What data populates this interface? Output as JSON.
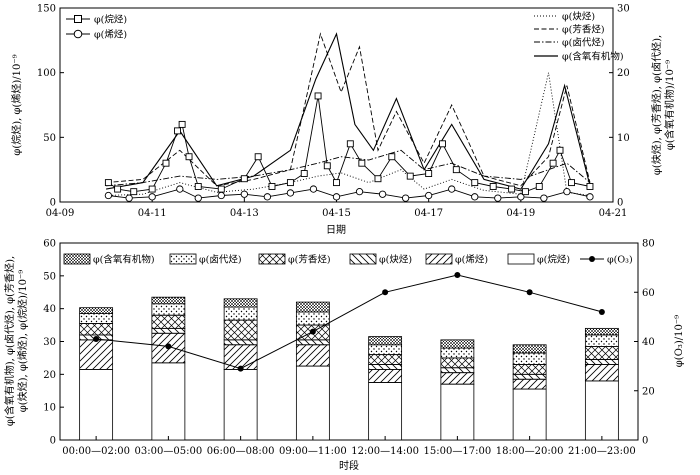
{
  "chart_data": [
    {
      "type": "line",
      "xlabel": "日期",
      "ylabel": "φ(烷烃), φ(烯烃)/10⁻⁹",
      "y2label_line1": "φ(炔烃), φ(芳香烃), φ(卤代烃),",
      "y2label_line2": "φ(含氧有机物)/10⁻⁹",
      "xticks": [
        "04-09",
        "04-11",
        "04-13",
        "04-15",
        "04-17",
        "04-19",
        "04-21"
      ],
      "xlim": [
        0,
        12
      ],
      "ylim": [
        0,
        150
      ],
      "y2lim": [
        0,
        30
      ],
      "yticks": [
        0,
        50,
        100,
        150
      ],
      "y2ticks": [
        0,
        10,
        20,
        30
      ],
      "legend_left": [
        "φ(烷烃)",
        "φ(烯烃)"
      ],
      "legend_right": [
        "φ(炔烃)",
        "φ(芳香烃)",
        "φ(卤代烃)",
        "φ(含氧有机物)"
      ],
      "series": [
        {
          "name": "φ(烷烃)",
          "axis": "left",
          "marker": "square",
          "points": [
            [
              1.05,
              15
            ],
            [
              1.25,
              10
            ],
            [
              1.6,
              8
            ],
            [
              2.0,
              10
            ],
            [
              2.3,
              30
            ],
            [
              2.55,
              55
            ],
            [
              2.65,
              60
            ],
            [
              2.8,
              35
            ],
            [
              3.0,
              12
            ],
            [
              3.5,
              10
            ],
            [
              4.0,
              18
            ],
            [
              4.3,
              35
            ],
            [
              4.6,
              12
            ],
            [
              5.0,
              15
            ],
            [
              5.3,
              22
            ],
            [
              5.6,
              82
            ],
            [
              5.8,
              28
            ],
            [
              6.0,
              15
            ],
            [
              6.3,
              45
            ],
            [
              6.55,
              30
            ],
            [
              6.9,
              18
            ],
            [
              7.2,
              35
            ],
            [
              7.6,
              20
            ],
            [
              8.0,
              22
            ],
            [
              8.3,
              45
            ],
            [
              8.6,
              25
            ],
            [
              9.0,
              15
            ],
            [
              9.4,
              12
            ],
            [
              9.8,
              10
            ],
            [
              10.1,
              8
            ],
            [
              10.4,
              12
            ],
            [
              10.7,
              30
            ],
            [
              10.85,
              40
            ],
            [
              11.1,
              15
            ],
            [
              11.5,
              12
            ]
          ]
        },
        {
          "name": "φ(烯烃)",
          "axis": "left",
          "marker": "circle",
          "points": [
            [
              1.05,
              5
            ],
            [
              1.5,
              3
            ],
            [
              2.0,
              4
            ],
            [
              2.6,
              10
            ],
            [
              3.0,
              3
            ],
            [
              3.5,
              5
            ],
            [
              4.0,
              6
            ],
            [
              4.5,
              4
            ],
            [
              5.0,
              7
            ],
            [
              5.5,
              10
            ],
            [
              6.0,
              4
            ],
            [
              6.5,
              8
            ],
            [
              7.0,
              6
            ],
            [
              7.5,
              3
            ],
            [
              8.0,
              5
            ],
            [
              8.5,
              10
            ],
            [
              9.0,
              4
            ],
            [
              9.5,
              3
            ],
            [
              10.0,
              4
            ],
            [
              10.5,
              3
            ],
            [
              11.0,
              8
            ],
            [
              11.5,
              4
            ]
          ]
        },
        {
          "name": "φ(炔烃)",
          "axis": "right",
          "points": [
            [
              1.0,
              1.0
            ],
            [
              1.8,
              1.2
            ],
            [
              2.6,
              3.0
            ],
            [
              3.4,
              1.5
            ],
            [
              4.2,
              2.0
            ],
            [
              5.0,
              3.0
            ],
            [
              5.6,
              4.0
            ],
            [
              6.1,
              4.5
            ],
            [
              6.7,
              3.0
            ],
            [
              7.4,
              5.0
            ],
            [
              7.9,
              2.0
            ],
            [
              8.5,
              3.5
            ],
            [
              9.2,
              1.8
            ],
            [
              10.0,
              1.2
            ],
            [
              10.6,
              20.0
            ],
            [
              11.0,
              1.5
            ],
            [
              11.5,
              1.0
            ]
          ]
        },
        {
          "name": "φ(芳香烃)",
          "axis": "right",
          "points": [
            [
              1.0,
              3.0
            ],
            [
              1.8,
              3.5
            ],
            [
              2.6,
              8.0
            ],
            [
              3.4,
              2.5
            ],
            [
              4.2,
              3.5
            ],
            [
              5.0,
              5.0
            ],
            [
              5.65,
              26.0
            ],
            [
              6.1,
              17.0
            ],
            [
              6.5,
              24.0
            ],
            [
              6.9,
              8.0
            ],
            [
              7.3,
              14.0
            ],
            [
              7.9,
              6.0
            ],
            [
              8.5,
              15.0
            ],
            [
              9.2,
              4.0
            ],
            [
              10.0,
              2.5
            ],
            [
              10.6,
              7.0
            ],
            [
              11.0,
              18.0
            ],
            [
              11.5,
              3.0
            ]
          ]
        },
        {
          "name": "φ(卤代烃)",
          "axis": "right",
          "points": [
            [
              1.0,
              2.5
            ],
            [
              1.8,
              3.0
            ],
            [
              2.6,
              4.0
            ],
            [
              3.4,
              3.5
            ],
            [
              4.2,
              4.0
            ],
            [
              5.0,
              5.0
            ],
            [
              5.6,
              6.0
            ],
            [
              6.1,
              7.0
            ],
            [
              6.7,
              6.5
            ],
            [
              7.4,
              8.0
            ],
            [
              7.9,
              5.0
            ],
            [
              8.5,
              6.0
            ],
            [
              9.2,
              4.0
            ],
            [
              10.0,
              3.5
            ],
            [
              10.6,
              5.0
            ],
            [
              11.0,
              6.0
            ],
            [
              11.5,
              3.0
            ]
          ]
        },
        {
          "name": "φ(含氧有机物)",
          "axis": "right",
          "points": [
            [
              1.0,
              2.0
            ],
            [
              1.8,
              3.0
            ],
            [
              2.6,
              11.0
            ],
            [
              3.4,
              2.5
            ],
            [
              4.2,
              4.0
            ],
            [
              5.0,
              8.0
            ],
            [
              5.55,
              19.0
            ],
            [
              6.0,
              26.0
            ],
            [
              6.4,
              12.0
            ],
            [
              6.8,
              8.0
            ],
            [
              7.3,
              16.0
            ],
            [
              7.9,
              5.0
            ],
            [
              8.5,
              12.0
            ],
            [
              9.2,
              3.5
            ],
            [
              10.0,
              2.0
            ],
            [
              10.6,
              9.0
            ],
            [
              10.95,
              18.0
            ],
            [
              11.5,
              2.5
            ]
          ]
        }
      ]
    },
    {
      "type": "bar",
      "stacked": true,
      "xlabel": "时段",
      "ylabel_line1": "φ(含氧有机物), φ(卤代烃), φ(芳香烃),",
      "ylabel_line2": "φ(炔烃), φ(烯烃), φ(烷烃)/10⁻⁹",
      "y2label": "φ(O₃)/10⁻⁹",
      "ylim": [
        0,
        60
      ],
      "y2lim": [
        0,
        80
      ],
      "yticks": [
        0,
        10,
        20,
        30,
        40,
        50,
        60
      ],
      "y2ticks": [
        0,
        20,
        40,
        60,
        80
      ],
      "categories": [
        "00:00—02:00",
        "03:00—05:00",
        "06:00—08:00",
        "09:00—11:00",
        "12:00—14:00",
        "15:00—17:00",
        "18:00—20:00",
        "21:00—23:00"
      ],
      "series": [
        {
          "name": "φ(烷烃)",
          "pattern": "solid-white",
          "values": [
            21.5,
            23.5,
            21.5,
            22.5,
            17.5,
            17.0,
            15.5,
            18.0
          ]
        },
        {
          "name": "φ(烯烃)",
          "pattern": "forward-hatch",
          "values": [
            9.0,
            9.0,
            7.5,
            6.5,
            4.0,
            3.5,
            3.0,
            5.0
          ]
        },
        {
          "name": "φ(炔烃)",
          "pattern": "back-hatch",
          "values": [
            1.5,
            1.5,
            1.5,
            1.5,
            1.5,
            1.5,
            1.5,
            1.5
          ]
        },
        {
          "name": "φ(芳香烃)",
          "pattern": "cross-hatch",
          "values": [
            3.5,
            4.0,
            6.0,
            4.5,
            3.0,
            3.0,
            3.0,
            4.0
          ]
        },
        {
          "name": "φ(卤代烃)",
          "pattern": "dots",
          "values": [
            3.0,
            3.5,
            4.0,
            4.0,
            3.0,
            3.0,
            3.5,
            3.5
          ]
        },
        {
          "name": "φ(含氧有机物)",
          "pattern": "dense-dots",
          "values": [
            1.8,
            2.0,
            2.5,
            3.0,
            2.5,
            2.5,
            2.5,
            2.0
          ]
        }
      ],
      "line": {
        "name": "φ(O₃)",
        "axis": "right",
        "values": [
          41,
          38,
          29,
          44,
          60,
          67,
          60,
          52
        ]
      }
    }
  ]
}
